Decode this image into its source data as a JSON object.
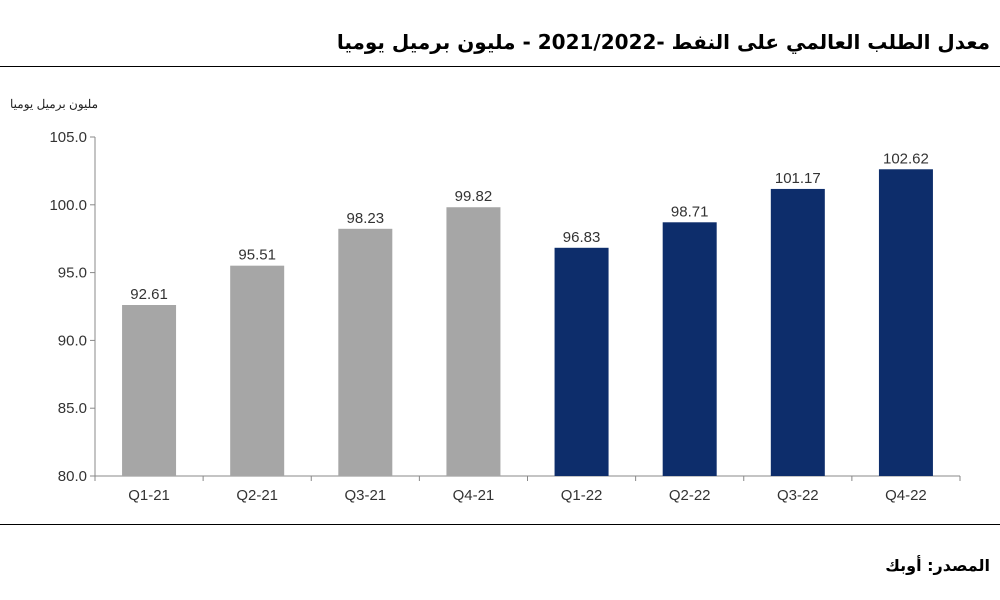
{
  "title": "معدل الطلب العالمي على النفط -2021/2022 - مليون برميل يوميا",
  "source": "المصدر: أوبك",
  "chart_data": {
    "type": "bar",
    "title": "معدل الطلب العالمي على النفط -2021/2022 - مليون برميل يوميا",
    "ylabel": "مليون برميل يوميا",
    "xlabel": "",
    "categories": [
      "Q1-21",
      "Q2-21",
      "Q3-21",
      "Q4-21",
      "Q1-22",
      "Q2-22",
      "Q3-22",
      "Q4-22"
    ],
    "values": [
      92.61,
      95.51,
      98.23,
      99.82,
      96.83,
      98.71,
      101.17,
      102.62
    ],
    "value_labels": [
      "92.61",
      "95.51",
      "98.23",
      "99.82",
      "96.83",
      "98.71",
      "101.17",
      "102.62"
    ],
    "bar_colors": [
      "#a6a6a6",
      "#a6a6a6",
      "#a6a6a6",
      "#a6a6a6",
      "#0d2d6b",
      "#0d2d6b",
      "#0d2d6b",
      "#0d2d6b"
    ],
    "ylim": [
      80,
      105
    ],
    "yticks": [
      80,
      85,
      90,
      95,
      100,
      105
    ],
    "ytick_labels": [
      "80.0",
      "85.0",
      "90.0",
      "95.0",
      "100.0",
      "105.0"
    ],
    "grid": false,
    "legend": "none"
  }
}
